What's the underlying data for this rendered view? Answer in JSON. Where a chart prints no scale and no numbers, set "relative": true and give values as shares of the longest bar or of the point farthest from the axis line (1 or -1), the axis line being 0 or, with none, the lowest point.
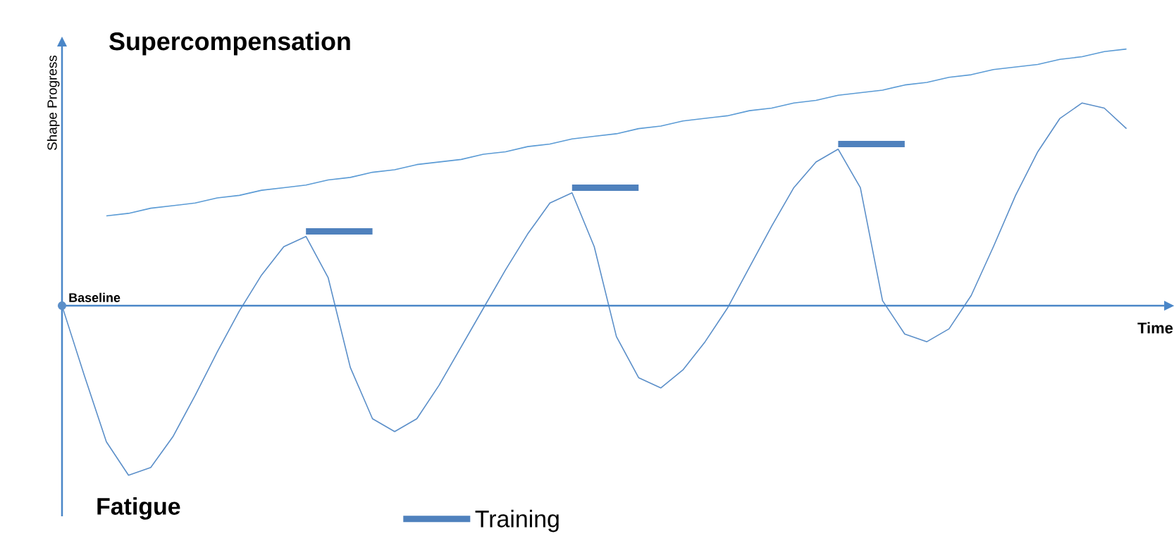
{
  "chart_data": {
    "type": "line",
    "relative": true,
    "title": "Supercompensation",
    "xlabel": "Time",
    "ylabel": "Shape Progress",
    "annotations": [
      "Fatigue"
    ],
    "ref_lines": [
      {
        "axis": "y",
        "value": 0,
        "label": "Baseline",
        "color": "#4a86c8"
      }
    ],
    "categories": [
      null,
      null,
      null,
      null,
      null,
      null,
      null,
      null,
      null,
      null,
      null,
      null,
      null,
      null,
      null,
      null,
      null,
      null,
      null,
      null,
      null,
      null,
      null,
      null,
      null,
      null,
      null,
      null,
      null,
      null,
      null,
      null,
      null,
      null,
      null,
      null,
      null,
      null,
      null,
      null,
      null,
      null,
      null,
      null,
      null,
      null,
      null,
      null,
      null
    ],
    "series": [
      {
        "color": "#5b8fc9",
        "values": [
          0,
          -0.27,
          -0.53,
          -0.66,
          -0.63,
          -0.51,
          -0.35,
          -0.18,
          -0.02,
          0.12,
          0.23,
          0.27,
          0.11,
          -0.24,
          -0.44,
          -0.49,
          -0.44,
          -0.31,
          -0.16,
          -0.01,
          0.14,
          0.28,
          0.4,
          0.44,
          0.23,
          -0.12,
          -0.28,
          -0.32,
          -0.25,
          -0.14,
          -0.01,
          0.15,
          0.31,
          0.46,
          0.56,
          0.61,
          0.46,
          0.02,
          -0.11,
          -0.14,
          -0.09,
          0.04,
          0.23,
          0.43,
          0.6,
          0.73,
          0.79,
          0.77,
          0.69
        ]
      },
      {
        "color": "#5b9bd5",
        "values": [
          null,
          null,
          0.35,
          0.36,
          0.38,
          0.39,
          0.4,
          0.42,
          0.43,
          0.45,
          0.46,
          0.47,
          0.49,
          0.5,
          0.52,
          0.53,
          0.55,
          0.56,
          0.57,
          0.59,
          0.6,
          0.62,
          0.63,
          0.65,
          0.66,
          0.67,
          0.69,
          0.7,
          0.72,
          0.73,
          0.74,
          0.76,
          0.77,
          0.79,
          0.8,
          0.82,
          0.83,
          0.84,
          0.86,
          0.87,
          0.89,
          0.9,
          0.92,
          0.93,
          0.94,
          0.96,
          0.97,
          0.99,
          1.0
        ]
      },
      {
        "name": "Training",
        "color": "#4f81bd",
        "values": [
          null,
          null,
          null,
          null,
          null,
          null,
          null,
          null,
          null,
          null,
          null,
          0.29,
          0.29,
          0.29,
          0.29,
          null,
          null,
          null,
          null,
          null,
          null,
          null,
          null,
          0.46,
          0.46,
          0.46,
          0.46,
          null,
          null,
          null,
          null,
          null,
          null,
          null,
          null,
          0.63,
          0.63,
          0.63,
          0.63,
          null,
          null,
          null,
          null,
          null,
          null,
          null,
          null,
          null,
          null
        ]
      }
    ],
    "legend": "bottom"
  }
}
